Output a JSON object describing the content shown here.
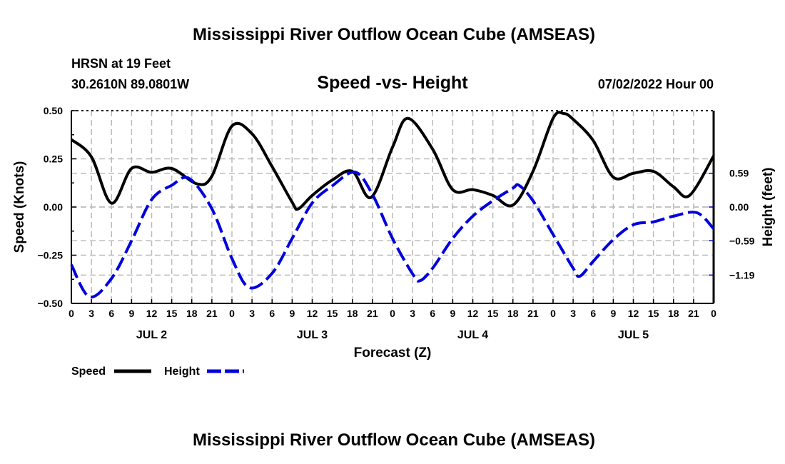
{
  "title": "Mississippi River Outflow Ocean Cube (AMSEAS)",
  "footer_title": "Mississippi River Outflow Ocean Cube (AMSEAS)",
  "station": "HRSN at 19 Feet",
  "coords": "30.2610N  89.0801W",
  "datetime": "07/02/2022 Hour 00",
  "chart_data": {
    "type": "line",
    "title": "Speed -vs- Height",
    "xlabel": "Forecast (Z)",
    "ylabel": "Speed (Knots)",
    "y2label": "Height (feet)",
    "xlim": [
      0,
      96
    ],
    "ylim": [
      -0.5,
      0.5
    ],
    "y2lim": [
      -1.6854,
      1.6854
    ],
    "grid": true,
    "legend_placement": "bottom-left",
    "x_tick_labels": [
      "0",
      "3",
      "6",
      "9",
      "12",
      "15",
      "18",
      "21",
      "0",
      "3",
      "6",
      "9",
      "12",
      "15",
      "18",
      "21",
      "0",
      "3",
      "6",
      "9",
      "12",
      "15",
      "18",
      "21",
      "0",
      "3",
      "6",
      "9",
      "12",
      "15",
      "18",
      "21",
      "0"
    ],
    "day_labels": [
      {
        "hour": 12,
        "label": "JUL 2"
      },
      {
        "hour": 36,
        "label": "JUL 3"
      },
      {
        "hour": 60,
        "label": "JUL 4"
      },
      {
        "hour": 84,
        "label": "JUL 5"
      }
    ],
    "y_ticks": [
      {
        "v": 0.5,
        "label": "0.50"
      },
      {
        "v": 0.25,
        "label": "0.25"
      },
      {
        "v": 0,
        "label": "0.00"
      },
      {
        "v": -0.25,
        "label": "−0.25"
      },
      {
        "v": -0.5,
        "label": "−0.50"
      }
    ],
    "y2_ticks": [
      {
        "v": 0.59,
        "label": "0.59"
      },
      {
        "v": 0,
        "label": "0.00"
      },
      {
        "v": -0.59,
        "label": "−0.59"
      },
      {
        "v": -1.19,
        "label": "−1.19"
      }
    ],
    "series": [
      {
        "name": "Speed",
        "axis": "left",
        "color": "#000000",
        "dash": false,
        "points": [
          [
            0,
            0.35
          ],
          [
            3,
            0.26
          ],
          [
            6,
            0.02
          ],
          [
            9,
            0.2
          ],
          [
            12,
            0.18
          ],
          [
            15,
            0.2
          ],
          [
            18.8,
            0.12
          ],
          [
            21,
            0.16
          ],
          [
            24,
            0.42
          ],
          [
            27,
            0.38
          ],
          [
            30,
            0.21
          ],
          [
            33,
            0.025
          ],
          [
            33.9,
            -0.01
          ],
          [
            36,
            0.06
          ],
          [
            39,
            0.14
          ],
          [
            42,
            0.185
          ],
          [
            44.8,
            0.05
          ],
          [
            48,
            0.31
          ],
          [
            50.3,
            0.46
          ],
          [
            54,
            0.3
          ],
          [
            57,
            0.09
          ],
          [
            60,
            0.09
          ],
          [
            63,
            0.06
          ],
          [
            66,
            0.01
          ],
          [
            69,
            0.185
          ],
          [
            72,
            0.46
          ],
          [
            73.6,
            0.485
          ],
          [
            75,
            0.455
          ],
          [
            78,
            0.345
          ],
          [
            81,
            0.155
          ],
          [
            84,
            0.175
          ],
          [
            87,
            0.185
          ],
          [
            90,
            0.105
          ],
          [
            92.4,
            0.06
          ],
          [
            96,
            0.265
          ]
        ]
      },
      {
        "name": "Height",
        "axis": "right",
        "color": "#0000dd",
        "dash": true,
        "points": [
          [
            0,
            -1.01
          ],
          [
            2.7,
            -1.57
          ],
          [
            6,
            -1.25
          ],
          [
            9,
            -0.59
          ],
          [
            12,
            0.13
          ],
          [
            15,
            0.38
          ],
          [
            17.6,
            0.5
          ],
          [
            21,
            -0.03
          ],
          [
            24,
            -0.9
          ],
          [
            26.6,
            -1.41
          ],
          [
            30,
            -1.16
          ],
          [
            33,
            -0.55
          ],
          [
            36,
            0.07
          ],
          [
            39,
            0.37
          ],
          [
            42.4,
            0.61
          ],
          [
            45,
            0.22
          ],
          [
            48,
            -0.55
          ],
          [
            51,
            -1.17
          ],
          [
            52.1,
            -1.29
          ],
          [
            54,
            -1.07
          ],
          [
            57,
            -0.55
          ],
          [
            60,
            -0.16
          ],
          [
            63,
            0.11
          ],
          [
            66,
            0.33
          ],
          [
            66.9,
            0.38
          ],
          [
            69,
            0.11
          ],
          [
            72,
            -0.48
          ],
          [
            75,
            -1.07
          ],
          [
            76,
            -1.21
          ],
          [
            78,
            -0.95
          ],
          [
            81,
            -0.57
          ],
          [
            84,
            -0.31
          ],
          [
            87,
            -0.26
          ],
          [
            90,
            -0.16
          ],
          [
            93.5,
            -0.1
          ],
          [
            96,
            -0.38
          ]
        ]
      }
    ]
  }
}
